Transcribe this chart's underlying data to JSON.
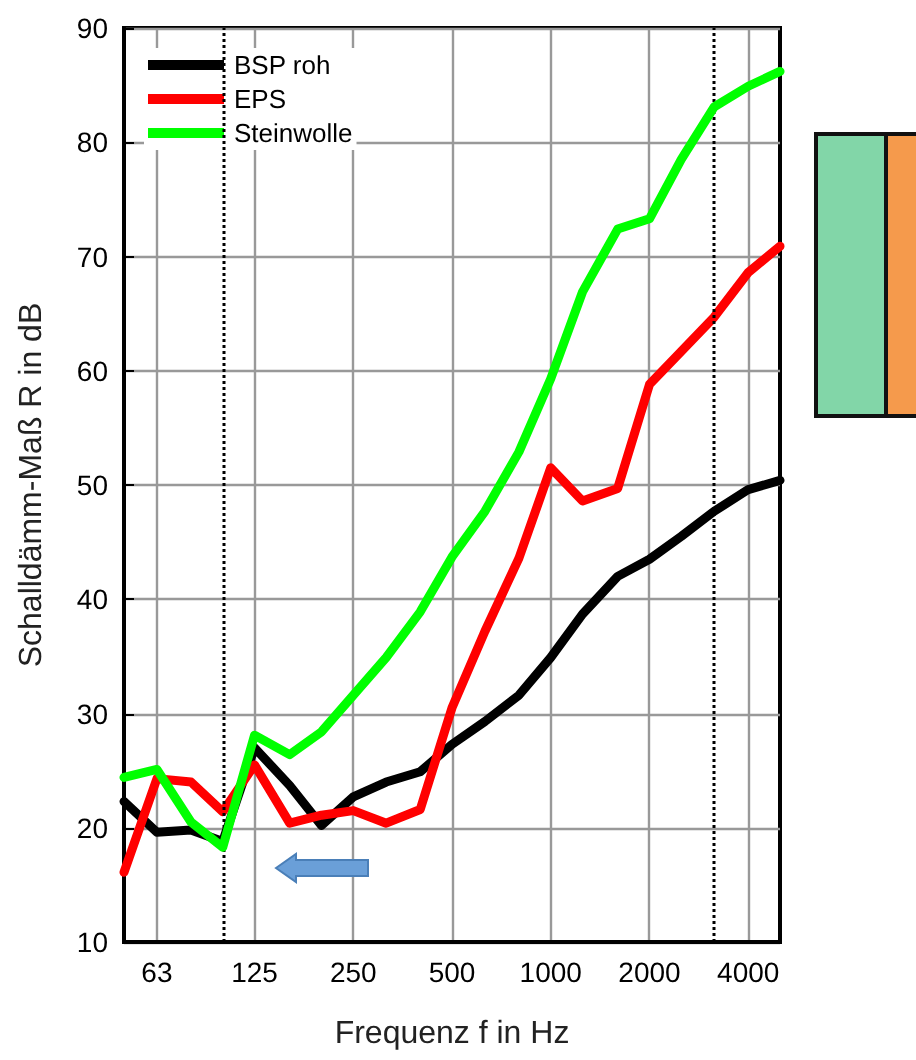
{
  "chart_data": {
    "type": "line",
    "xlabel": "Frequenz f in Hz",
    "ylabel": "Schalldämm-Maß R in dB",
    "x": [
      50,
      63,
      80,
      100,
      125,
      160,
      200,
      250,
      315,
      400,
      500,
      630,
      800,
      1000,
      1250,
      1600,
      2000,
      2500,
      3150,
      4000,
      5000
    ],
    "series": [
      {
        "name": "BSP roh",
        "color": "#000000",
        "values": [
          22.3,
          19.6,
          19.8,
          18.8,
          27.0,
          23.7,
          20.2,
          22.7,
          24.0,
          24.9,
          27.3,
          29.3,
          31.6,
          34.9,
          38.7,
          42.0,
          43.5,
          45.5,
          47.7,
          49.6,
          50.4
        ]
      },
      {
        "name": "EPS",
        "color": "#ff0000",
        "values": [
          16.1,
          24.3,
          24.0,
          21.4,
          25.5,
          20.4,
          21.1,
          21.5,
          20.4,
          21.6,
          30.5,
          37.2,
          43.6,
          51.5,
          48.6,
          49.7,
          58.8,
          61.7,
          64.7,
          68.6,
          70.9
        ]
      },
      {
        "name": "Steinwolle",
        "color": "#00ff00",
        "values": [
          24.4,
          25.1,
          20.5,
          18.3,
          28.1,
          26.4,
          28.4,
          31.6,
          34.9,
          38.9,
          43.7,
          47.7,
          52.9,
          59.3,
          66.9,
          72.4,
          73.3,
          78.5,
          83.1,
          84.9,
          86.2
        ]
      }
    ],
    "xlim": [
      50,
      5000
    ],
    "xticks": [
      63,
      125,
      250,
      500,
      1000,
      2000,
      4000
    ],
    "log": "x",
    "ylim": [
      10,
      90
    ],
    "yticks": [
      10,
      20,
      30,
      40,
      50,
      60,
      70,
      80,
      90
    ],
    "ref_lines": [
      {
        "axis": "x",
        "value": 100,
        "color": "#000000",
        "line_style": "dotted"
      },
      {
        "axis": "x",
        "value": 3150,
        "color": "#000000",
        "line_style": "dotted"
      }
    ],
    "grid": true,
    "legend": "top left",
    "marker": "none",
    "line_style": "solid"
  }
}
